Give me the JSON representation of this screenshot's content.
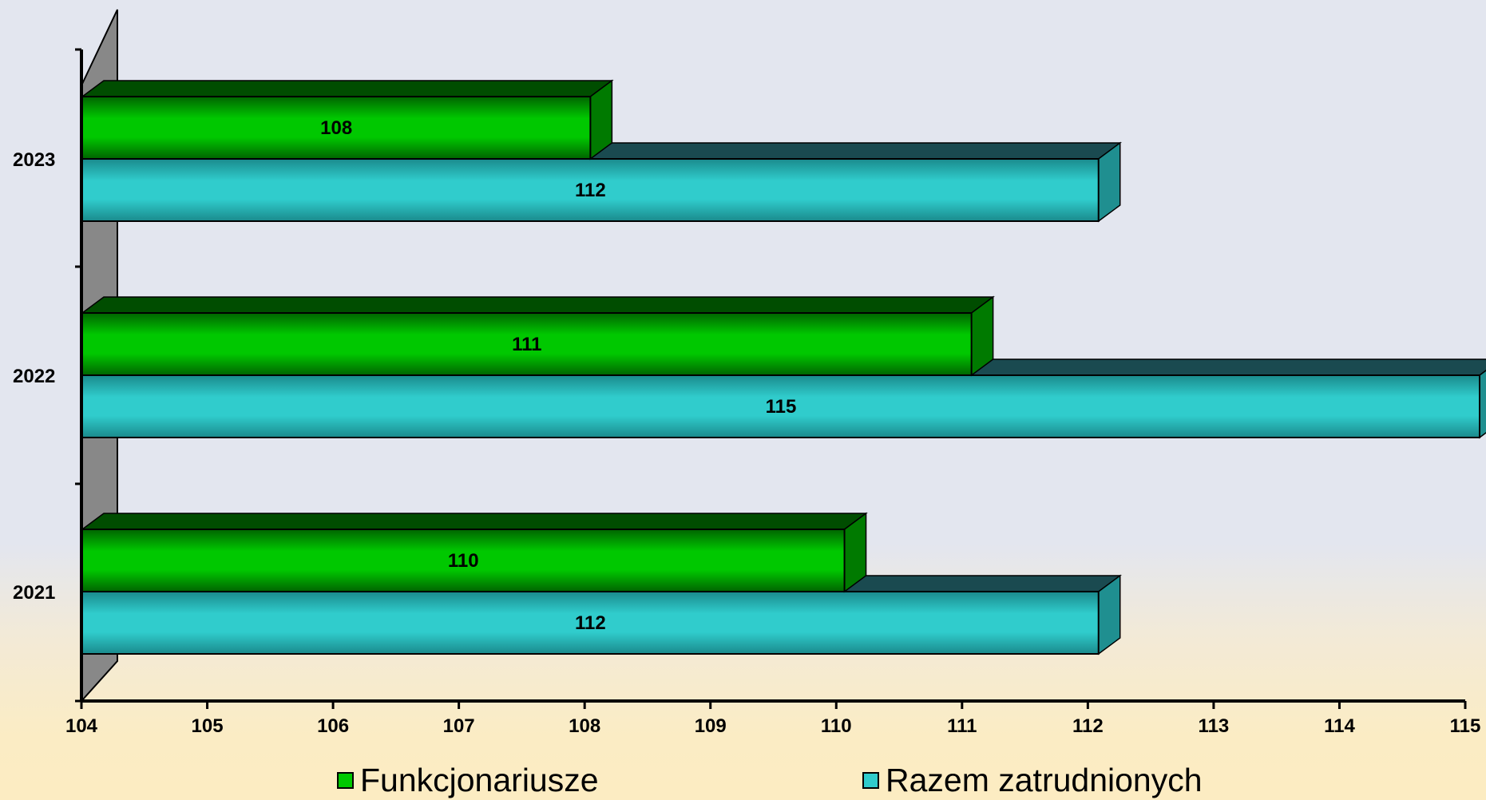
{
  "chart_data": {
    "type": "bar",
    "orientation": "horizontal",
    "three_d": true,
    "categories": [
      "2021",
      "2022",
      "2023"
    ],
    "series": [
      {
        "name": "Funkcjonariusze",
        "values": [
          110,
          111,
          108
        ],
        "color": "#00c800"
      },
      {
        "name": "Razem zatrudnionych",
        "values": [
          112,
          115,
          112
        ],
        "color": "#30cccc"
      }
    ],
    "xlim": [
      104,
      115
    ],
    "x_ticks": [
      "104",
      "105",
      "106",
      "107",
      "108",
      "109",
      "110",
      "111",
      "112",
      "113",
      "114",
      "115"
    ],
    "title": "",
    "xlabel": "",
    "ylabel": "",
    "grid": false,
    "legend_position": "bottom",
    "data_labels": true
  },
  "colors": {
    "wall": "#888888",
    "green_front": "#00c800",
    "green_top": "#004d00",
    "green_side": "#007a00",
    "cyan_front": "#30cccc",
    "cyan_top": "#1a4a50",
    "cyan_side": "#1f8f90",
    "axis": "#000000"
  }
}
